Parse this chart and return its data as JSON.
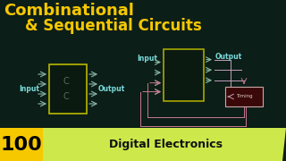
{
  "bg_color": "#0c1e18",
  "title_line1": "Combinational",
  "title_line2": "& Sequential Circuits",
  "title_color": "#f5c800",
  "title_fontsize": 13,
  "badge_number": "100",
  "badge_bg_color": "#f5c800",
  "badge_text": "Digital Electronics",
  "badge_text_color": "#111111",
  "badge_band_color": "#cce84a",
  "comb_box_edge": "#b8b800",
  "comb_box_face": "#0a1a10",
  "arrow_color": "#8ab8a8",
  "comb_input_label": "Input",
  "comb_output_label": "Output",
  "comb_c_color": "#606860",
  "seq_box_edge": "#a8a800",
  "seq_box_face": "#0a1a10",
  "seq_arrow_color": "#8ab8a0",
  "seq_line_color": "#c0a0b8",
  "seq_input_label": "Input",
  "seq_output_label": "Output",
  "mem_box_face": "#3a0808",
  "mem_box_edge": "#c8a8a8",
  "mem_label": "Timing",
  "mem_label_color": "#ddcccc",
  "feedback_color": "#c87890"
}
